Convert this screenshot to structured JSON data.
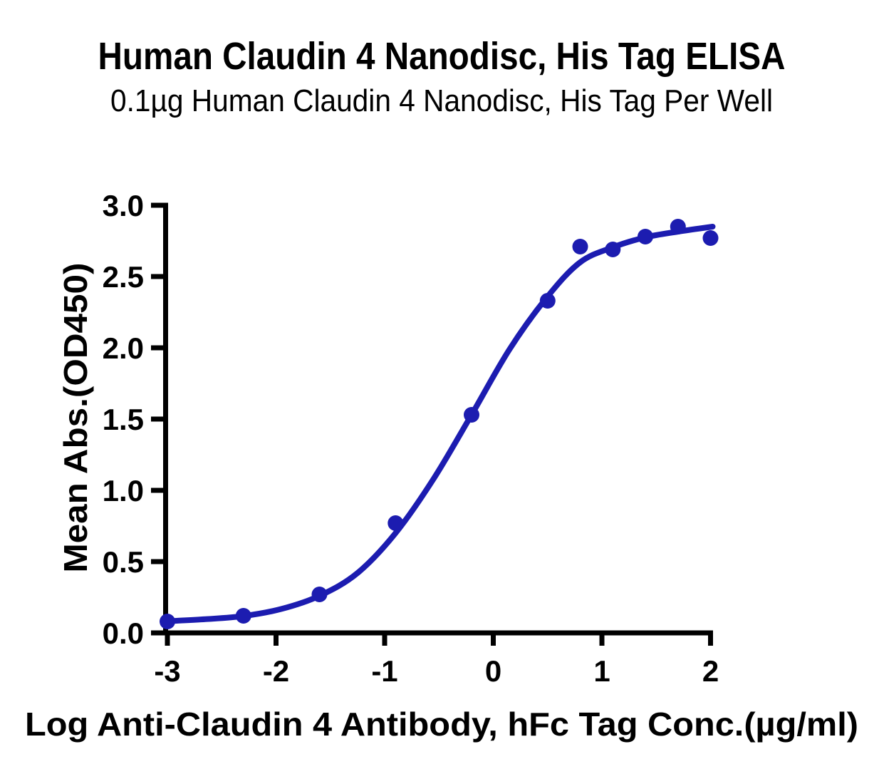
{
  "chart_data": {
    "type": "scatter",
    "title": "Human Claudin 4 Nanodisc, His Tag ELISA",
    "subtitle": "0.1µg Human Claudin 4 Nanodisc, His Tag Per Well",
    "xlabel": "Log Anti-Claudin 4 Antibody, hFc Tag Conc.(µg/ml)",
    "ylabel": "Mean Abs.(OD450)",
    "xlim": [
      -3,
      2.05
    ],
    "ylim": [
      0,
      3
    ],
    "x_ticks": [
      "-3",
      "-2",
      "-1",
      "0",
      "1",
      "2"
    ],
    "y_ticks": [
      "0.0",
      "0.5",
      "1.0",
      "1.5",
      "2.0",
      "2.5",
      "3.0"
    ],
    "grid": false,
    "legend": "none",
    "colors": {
      "points": "#1C1CB0",
      "curve": "#1C1CB0",
      "axes": "#000000",
      "text": "#000000"
    },
    "points": {
      "x": [
        -3.0,
        -2.3,
        -1.6,
        -0.9,
        -0.2,
        0.5,
        0.8,
        1.1,
        1.4,
        1.7,
        2.0
      ],
      "y": [
        0.08,
        0.12,
        0.27,
        0.77,
        1.53,
        2.33,
        2.71,
        2.69,
        2.78,
        2.85,
        2.77
      ]
    },
    "fit_curve": {
      "model": "sigmoidal dose-response (4PL)",
      "anchors": [
        [
          -3.0,
          0.082
        ],
        [
          -2.65,
          0.096
        ],
        [
          -2.3,
          0.118
        ],
        [
          -1.95,
          0.168
        ],
        [
          -1.6,
          0.26
        ],
        [
          -1.25,
          0.42
        ],
        [
          -0.9,
          0.7
        ],
        [
          -0.55,
          1.08
        ],
        [
          -0.2,
          1.53
        ],
        [
          0.15,
          1.99
        ],
        [
          0.5,
          2.36
        ],
        [
          0.8,
          2.6
        ],
        [
          1.1,
          2.705
        ],
        [
          1.4,
          2.775
        ],
        [
          1.7,
          2.815
        ],
        [
          2.02,
          2.85
        ]
      ]
    }
  }
}
